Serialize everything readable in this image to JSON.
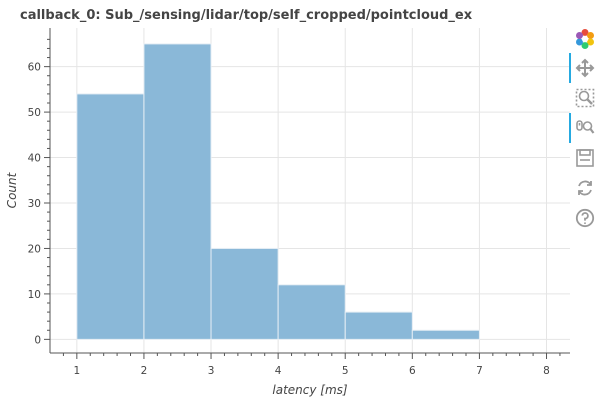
{
  "chart_data": {
    "type": "bar",
    "title": "callback_0: Sub_/sensing/lidar/top/self_cropped/pointcloud_ex",
    "xlabel": "latency [ms]",
    "ylabel": "Count",
    "bins": [
      {
        "x0": 1,
        "x1": 2,
        "count": 54
      },
      {
        "x0": 2,
        "x1": 3,
        "count": 65
      },
      {
        "x0": 3,
        "x1": 4,
        "count": 20
      },
      {
        "x0": 4,
        "x1": 5,
        "count": 12
      },
      {
        "x0": 5,
        "x1": 6,
        "count": 6
      },
      {
        "x0": 6,
        "x1": 7,
        "count": 2
      }
    ],
    "xlim": [
      0.6,
      8.35
    ],
    "ylim": [
      -3,
      68.5
    ],
    "xticks": [
      1,
      2,
      3,
      4,
      5,
      6,
      7,
      8
    ],
    "yticks": [
      0,
      10,
      20,
      30,
      40,
      50,
      60
    ],
    "grid": true,
    "bar_color": "#8ab8d8",
    "bar_edge_color": "#e6eef5"
  },
  "toolbar": {
    "tools": [
      {
        "name": "bokeh-logo-icon",
        "interactable": false
      },
      {
        "name": "pan-icon",
        "interactable": true,
        "active": true
      },
      {
        "name": "box-zoom-icon",
        "interactable": true
      },
      {
        "name": "wheel-zoom-icon",
        "interactable": true,
        "active": true
      },
      {
        "name": "save-icon",
        "interactable": true
      },
      {
        "name": "reset-icon",
        "interactable": true
      },
      {
        "name": "help-icon",
        "interactable": true
      }
    ]
  }
}
